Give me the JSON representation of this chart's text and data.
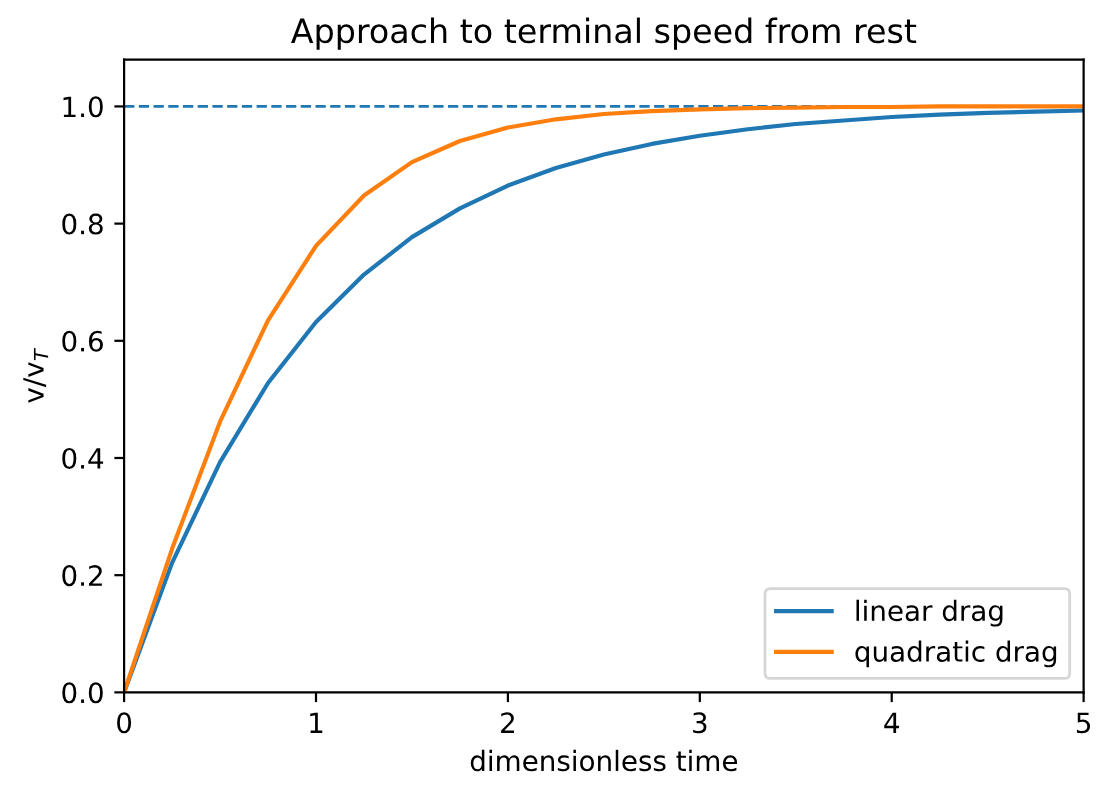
{
  "chart_data": {
    "type": "line",
    "title": "Approach to terminal speed from rest",
    "xlabel": "dimensionless time",
    "ylabel": "v/v$_{T}$",
    "x": [
      0,
      0.25,
      0.5,
      0.75,
      1,
      1.25,
      1.5,
      1.75,
      2,
      2.25,
      2.5,
      2.75,
      3,
      3.25,
      3.5,
      3.75,
      4,
      4.25,
      4.5,
      4.75,
      5
    ],
    "series": [
      {
        "name": "linear drag",
        "color": "#1f77b4",
        "values": [
          0,
          0.221,
          0.393,
          0.528,
          0.632,
          0.713,
          0.777,
          0.826,
          0.865,
          0.895,
          0.918,
          0.936,
          0.95,
          0.961,
          0.97,
          0.976,
          0.982,
          0.986,
          0.989,
          0.991,
          0.993
        ]
      },
      {
        "name": "quadratic drag",
        "color": "#ff7f0e",
        "values": [
          0,
          0.245,
          0.462,
          0.635,
          0.762,
          0.848,
          0.905,
          0.941,
          0.964,
          0.978,
          0.987,
          0.992,
          0.995,
          0.997,
          0.998,
          0.999,
          0.999,
          1.0,
          1.0,
          1.0,
          1.0
        ]
      }
    ],
    "xlim": [
      0,
      5
    ],
    "xticks": [
      0,
      1,
      2,
      3,
      4,
      5
    ],
    "ylim": [
      0,
      1.08
    ],
    "yticks": [
      {
        "value": 0,
        "label": "0.0"
      },
      0.2,
      0.4,
      0.6,
      0.8,
      {
        "value": 1,
        "label": "1.0"
      }
    ],
    "ref_lines": [
      {
        "axis": "y",
        "value": 1.0,
        "color": "#1f77b4",
        "line_style": "dashed"
      }
    ],
    "legend": "lower right",
    "grid": false,
    "marker": "none",
    "line_style": "solid"
  }
}
